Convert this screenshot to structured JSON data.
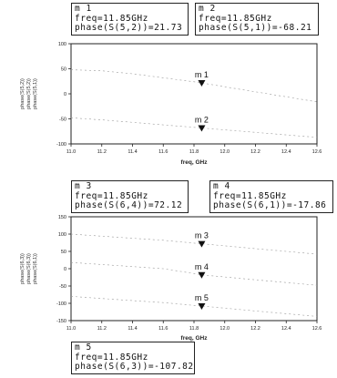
{
  "markers": [
    {
      "id": "m1",
      "name": "m 1",
      "freq": "freq=11.85GHz",
      "readout": "phase(S(5,2))=21.73"
    },
    {
      "id": "m2",
      "name": "m 2",
      "freq": "freq=11.85GHz",
      "readout": "phase(S(5,1))=-68.21"
    },
    {
      "id": "m3",
      "name": "m 3",
      "freq": "freq=11.85GHz",
      "readout": "phase(S(6,4))=72.12"
    },
    {
      "id": "m4",
      "name": "m 4",
      "freq": "freq=11.85GHz",
      "readout": "phase(S(6,1))=-17.86"
    },
    {
      "id": "m5",
      "name": "m 5",
      "freq": "freq=11.85GHz",
      "readout": "phase(S(6,3))=-107.82"
    }
  ],
  "chart_data": [
    {
      "type": "line",
      "xlabel": "freq, GHz",
      "ylabel_lines": [
        "phase(S(5,2))",
        "phase(S(5,2))",
        "phase(S(5,1))"
      ],
      "xlim": [
        11.0,
        12.6
      ],
      "ylim": [
        -100,
        100
      ],
      "x_ticks": [
        "11.0",
        "11.2",
        "11.4",
        "11.6",
        "11.8",
        "12.0",
        "12.2",
        "12.4",
        "12.6"
      ],
      "y_ticks": [
        "100",
        "50",
        "0",
        "-50",
        "-100"
      ],
      "y_tick_values": [
        100,
        50,
        0,
        -50,
        -100
      ],
      "grid": false,
      "series": [
        {
          "x": [
            11.0,
            11.2,
            11.4,
            11.6,
            11.8,
            11.85,
            12.0,
            12.2,
            12.4,
            12.6
          ],
          "y": [
            48,
            46,
            40,
            32,
            24,
            21.73,
            14,
            4,
            -6,
            -16
          ]
        },
        {
          "x": [
            11.0,
            11.2,
            11.4,
            11.6,
            11.8,
            11.85,
            12.0,
            12.2,
            12.4,
            12.6
          ],
          "y": [
            -48,
            -52,
            -57,
            -62,
            -67,
            -68.21,
            -72,
            -77,
            -82,
            -87
          ]
        }
      ],
      "markers": [
        {
          "name": "m 1",
          "x": 11.85,
          "y": 21.73
        },
        {
          "name": "m 2",
          "x": 11.85,
          "y": -68.21
        }
      ]
    },
    {
      "type": "line",
      "xlabel": "freq, GHz",
      "ylabel_lines": [
        "phase(S(6,3))",
        "phase(S(6,3))",
        "phase(S(6,1))"
      ],
      "xlim": [
        11.0,
        12.6
      ],
      "ylim": [
        -150,
        150
      ],
      "x_ticks": [
        "11.0",
        "11.2",
        "11.4",
        "11.6",
        "11.8",
        "12.0",
        "12.2",
        "12.4",
        "12.6"
      ],
      "y_ticks": [
        "150",
        "100",
        "50",
        "0",
        "-50",
        "-100",
        "-150"
      ],
      "y_tick_values": [
        150,
        100,
        50,
        0,
        -50,
        -100,
        -150
      ],
      "grid": false,
      "series": [
        {
          "x": [
            11.0,
            11.2,
            11.4,
            11.6,
            11.8,
            11.85,
            12.0,
            12.2,
            12.4,
            12.6
          ],
          "y": [
            100,
            94,
            88,
            82,
            74,
            72.12,
            66,
            58,
            50,
            42
          ]
        },
        {
          "x": [
            11.0,
            11.2,
            11.4,
            11.6,
            11.8,
            11.85,
            12.0,
            12.2,
            12.4,
            12.6
          ],
          "y": [
            18,
            12,
            6,
            0,
            -14,
            -17.86,
            -24,
            -32,
            -40,
            -48
          ]
        },
        {
          "x": [
            11.0,
            11.2,
            11.4,
            11.6,
            11.8,
            11.85,
            12.0,
            12.2,
            12.4,
            12.6
          ],
          "y": [
            -80,
            -86,
            -92,
            -98,
            -106,
            -107.82,
            -114,
            -122,
            -130,
            -138
          ]
        }
      ],
      "markers": [
        {
          "name": "m 3",
          "x": 11.85,
          "y": 72.12
        },
        {
          "name": "m 4",
          "x": 11.85,
          "y": -17.86
        },
        {
          "name": "m 5",
          "x": 11.85,
          "y": -107.82
        }
      ]
    }
  ]
}
